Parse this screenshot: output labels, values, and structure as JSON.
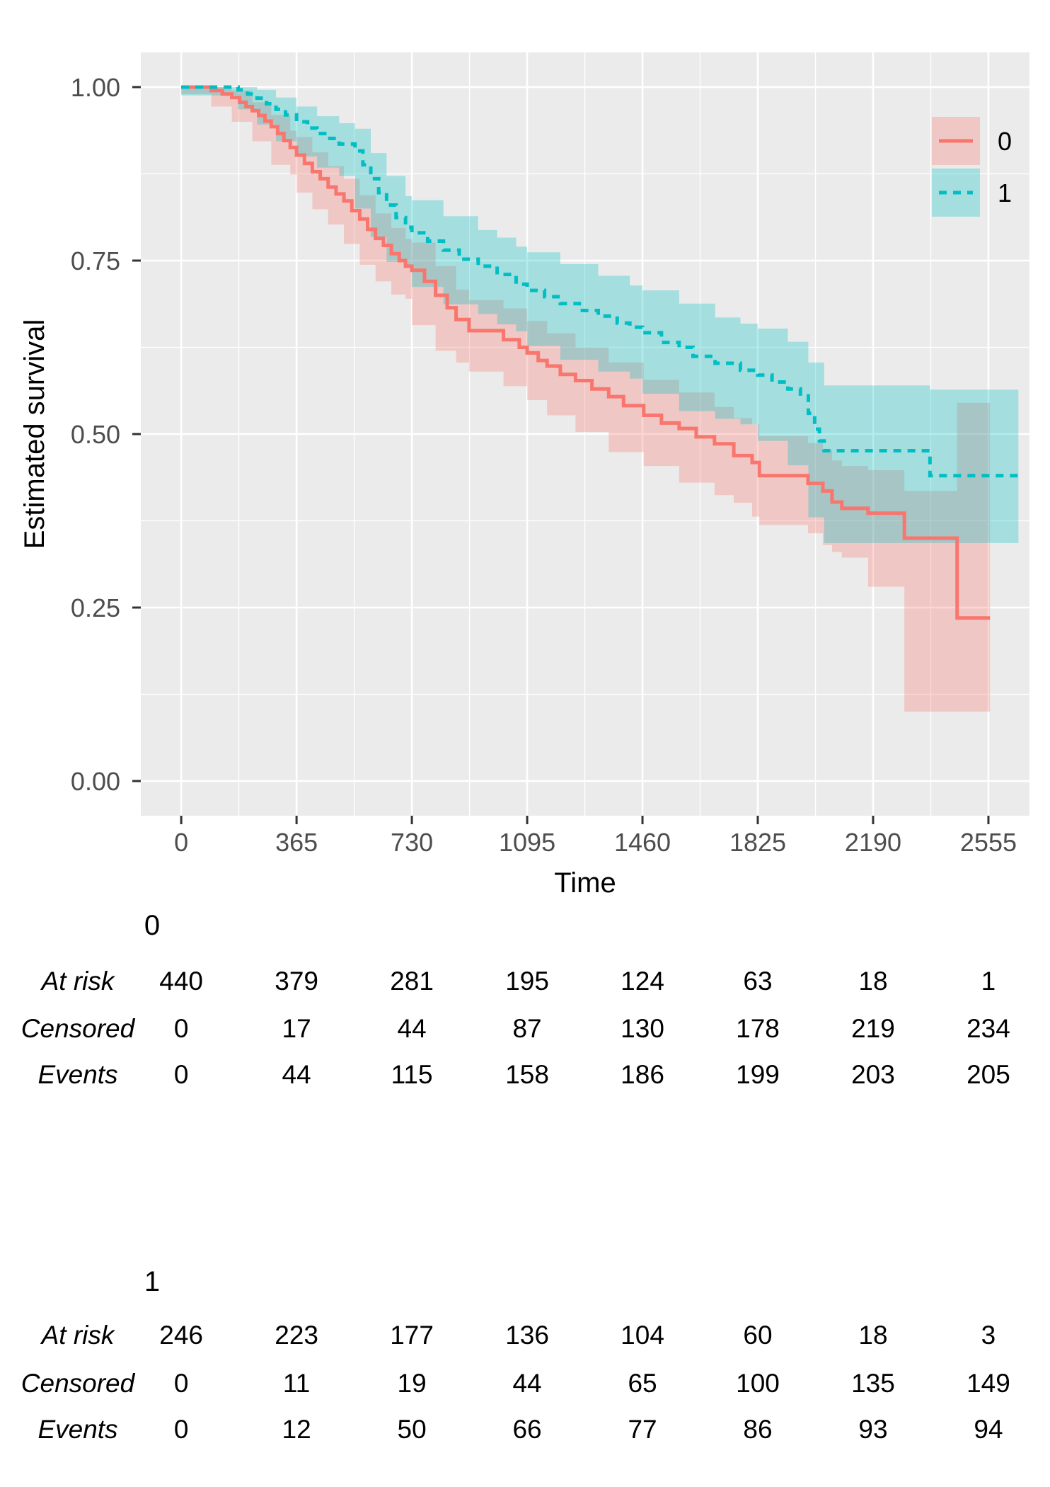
{
  "chart_data": {
    "type": "line",
    "subtype": "kaplan-meier-step-with-confidence-bands",
    "title": "",
    "xlabel": "Time",
    "ylabel": "Estimated survival",
    "xlim": [
      -128,
      2685
    ],
    "ylim": [
      -0.05,
      1.05
    ],
    "x_ticks": [
      0,
      365,
      730,
      1095,
      1460,
      1825,
      2190,
      2555
    ],
    "y_ticks": [
      0,
      0.25,
      0.5,
      0.75,
      1
    ],
    "y_tick_labels": [
      "0.00",
      "0.25",
      "0.50",
      "0.75",
      "1.00"
    ],
    "grid": true,
    "panel_background": "#EBEBEB",
    "grid_color": "#FFFFFF",
    "tick_mark_color": "#333333",
    "tick_text_color": "#4d4d4d",
    "legend": {
      "position": "top-right-inside",
      "entries": [
        {
          "label": "0",
          "color": "#F8766D",
          "linestyle": "solid"
        },
        {
          "label": "1",
          "color": "#00BFC4",
          "linestyle": "dashed"
        }
      ]
    },
    "series": [
      {
        "name": "0",
        "color": "#F8766D",
        "linestyle": "solid",
        "band_fill": "rgba(248,118,109,0.30)",
        "steps": [
          [
            0,
            1.0
          ],
          [
            95,
            0.995
          ],
          [
            130,
            0.99
          ],
          [
            160,
            0.985
          ],
          [
            185,
            0.978
          ],
          [
            205,
            0.972
          ],
          [
            225,
            0.966
          ],
          [
            245,
            0.959
          ],
          [
            265,
            0.951
          ],
          [
            285,
            0.943
          ],
          [
            305,
            0.933
          ],
          [
            325,
            0.923
          ],
          [
            345,
            0.913
          ],
          [
            365,
            0.902
          ],
          [
            390,
            0.89
          ],
          [
            415,
            0.878
          ],
          [
            440,
            0.868
          ],
          [
            465,
            0.856
          ],
          [
            490,
            0.846
          ],
          [
            515,
            0.836
          ],
          [
            540,
            0.822
          ],
          [
            565,
            0.81
          ],
          [
            590,
            0.795
          ],
          [
            615,
            0.782
          ],
          [
            640,
            0.772
          ],
          [
            665,
            0.76
          ],
          [
            690,
            0.75
          ],
          [
            710,
            0.742
          ],
          [
            730,
            0.736
          ],
          [
            770,
            0.72
          ],
          [
            805,
            0.7
          ],
          [
            842,
            0.682
          ],
          [
            870,
            0.665
          ],
          [
            911,
            0.649
          ],
          [
            1020,
            0.636
          ],
          [
            1070,
            0.625
          ],
          [
            1095,
            0.617
          ],
          [
            1130,
            0.606
          ],
          [
            1158,
            0.598
          ],
          [
            1200,
            0.586
          ],
          [
            1248,
            0.577
          ],
          [
            1300,
            0.565
          ],
          [
            1353,
            0.554
          ],
          [
            1400,
            0.541
          ],
          [
            1464,
            0.527
          ],
          [
            1520,
            0.516
          ],
          [
            1576,
            0.508
          ],
          [
            1630,
            0.496
          ],
          [
            1688,
            0.486
          ],
          [
            1749,
            0.469
          ],
          [
            1807,
            0.459
          ],
          [
            1830,
            0.44
          ],
          [
            1984,
            0.429
          ],
          [
            2031,
            0.418
          ],
          [
            2060,
            0.402
          ],
          [
            2091,
            0.393
          ],
          [
            2174,
            0.386
          ],
          [
            2289,
            0.35
          ],
          [
            2456,
            0.235
          ],
          [
            2560,
            0.235
          ]
        ],
        "ci": [
          [
            0,
            1,
            1
          ],
          [
            95,
            0.99,
            1
          ],
          [
            160,
            0.972,
            0.995
          ],
          [
            225,
            0.95,
            0.978
          ],
          [
            285,
            0.922,
            0.96
          ],
          [
            345,
            0.888,
            0.937
          ],
          [
            365,
            0.874,
            0.928
          ],
          [
            415,
            0.848,
            0.906
          ],
          [
            465,
            0.824,
            0.886
          ],
          [
            515,
            0.802,
            0.868
          ],
          [
            565,
            0.774,
            0.844
          ],
          [
            615,
            0.744,
            0.818
          ],
          [
            665,
            0.72,
            0.797
          ],
          [
            710,
            0.701,
            0.781
          ],
          [
            730,
            0.695,
            0.776
          ],
          [
            805,
            0.657,
            0.742
          ],
          [
            870,
            0.62,
            0.708
          ],
          [
            911,
            0.603,
            0.693
          ],
          [
            1020,
            0.59,
            0.681
          ],
          [
            1095,
            0.569,
            0.663
          ],
          [
            1158,
            0.549,
            0.645
          ],
          [
            1248,
            0.527,
            0.625
          ],
          [
            1353,
            0.503,
            0.603
          ],
          [
            1464,
            0.474,
            0.578
          ],
          [
            1576,
            0.454,
            0.56
          ],
          [
            1688,
            0.43,
            0.539
          ],
          [
            1749,
            0.412,
            0.523
          ],
          [
            1807,
            0.401,
            0.514
          ],
          [
            1830,
            0.381,
            0.497
          ],
          [
            1984,
            0.369,
            0.487
          ],
          [
            2031,
            0.357,
            0.477
          ],
          [
            2060,
            0.34,
            0.462
          ],
          [
            2091,
            0.33,
            0.454
          ],
          [
            2174,
            0.322,
            0.448
          ],
          [
            2289,
            0.28,
            0.418
          ],
          [
            2456,
            0.1,
            0.545
          ],
          [
            2560,
            0.1,
            0.545
          ]
        ]
      },
      {
        "name": "1",
        "color": "#00BFC4",
        "linestyle": "dashed",
        "band_fill": "rgba(0,191,196,0.30)",
        "steps": [
          [
            0,
            1.0
          ],
          [
            180,
            0.996
          ],
          [
            210,
            0.99
          ],
          [
            240,
            0.984
          ],
          [
            270,
            0.976
          ],
          [
            300,
            0.968
          ],
          [
            330,
            0.96
          ],
          [
            365,
            0.95
          ],
          [
            400,
            0.941
          ],
          [
            430,
            0.933
          ],
          [
            460,
            0.926
          ],
          [
            500,
            0.918
          ],
          [
            550,
            0.908
          ],
          [
            575,
            0.888
          ],
          [
            600,
            0.868
          ],
          [
            625,
            0.848
          ],
          [
            650,
            0.83
          ],
          [
            680,
            0.812
          ],
          [
            710,
            0.798
          ],
          [
            730,
            0.79
          ],
          [
            780,
            0.778
          ],
          [
            830,
            0.765
          ],
          [
            880,
            0.752
          ],
          [
            940,
            0.742
          ],
          [
            1000,
            0.73
          ],
          [
            1060,
            0.716
          ],
          [
            1095,
            0.707
          ],
          [
            1150,
            0.698
          ],
          [
            1200,
            0.688
          ],
          [
            1260,
            0.678
          ],
          [
            1320,
            0.67
          ],
          [
            1380,
            0.66
          ],
          [
            1420,
            0.654
          ],
          [
            1460,
            0.646
          ],
          [
            1520,
            0.632
          ],
          [
            1576,
            0.625
          ],
          [
            1620,
            0.612
          ],
          [
            1690,
            0.602
          ],
          [
            1770,
            0.592
          ],
          [
            1825,
            0.585
          ],
          [
            1870,
            0.575
          ],
          [
            1920,
            0.565
          ],
          [
            1960,
            0.555
          ],
          [
            1985,
            0.53
          ],
          [
            2005,
            0.507
          ],
          [
            2020,
            0.49
          ],
          [
            2035,
            0.476
          ],
          [
            2370,
            0.44
          ],
          [
            2650,
            0.44
          ]
        ],
        "ci": [
          [
            0,
            1,
            1
          ],
          [
            180,
            0.988,
            1
          ],
          [
            240,
            0.968,
            0.996
          ],
          [
            300,
            0.946,
            0.985
          ],
          [
            365,
            0.922,
            0.972
          ],
          [
            430,
            0.9,
            0.958
          ],
          [
            500,
            0.884,
            0.948
          ],
          [
            550,
            0.872,
            0.94
          ],
          [
            600,
            0.825,
            0.905
          ],
          [
            650,
            0.784,
            0.872
          ],
          [
            710,
            0.748,
            0.843
          ],
          [
            730,
            0.74,
            0.837
          ],
          [
            830,
            0.712,
            0.814
          ],
          [
            940,
            0.687,
            0.794
          ],
          [
            1000,
            0.673,
            0.783
          ],
          [
            1060,
            0.658,
            0.77
          ],
          [
            1095,
            0.648,
            0.762
          ],
          [
            1200,
            0.627,
            0.745
          ],
          [
            1320,
            0.607,
            0.728
          ],
          [
            1420,
            0.59,
            0.714
          ],
          [
            1460,
            0.58,
            0.707
          ],
          [
            1576,
            0.558,
            0.688
          ],
          [
            1690,
            0.533,
            0.668
          ],
          [
            1770,
            0.522,
            0.659
          ],
          [
            1825,
            0.514,
            0.652
          ],
          [
            1920,
            0.49,
            0.633
          ],
          [
            1985,
            0.455,
            0.603
          ],
          [
            2035,
            0.38,
            0.57
          ],
          [
            2370,
            0.343,
            0.564
          ],
          [
            2650,
            0.343,
            0.564
          ]
        ]
      }
    ]
  },
  "risk_tables": {
    "times": [
      0,
      365,
      730,
      1095,
      1460,
      1825,
      2190,
      2555
    ],
    "row_labels": [
      "At risk",
      "Censored",
      "Events"
    ],
    "groups": [
      {
        "label": "0",
        "rows": [
          [
            440,
            379,
            281,
            195,
            124,
            63,
            18,
            1
          ],
          [
            0,
            17,
            44,
            87,
            130,
            178,
            219,
            234
          ],
          [
            0,
            44,
            115,
            158,
            186,
            199,
            203,
            205
          ]
        ]
      },
      {
        "label": "1",
        "rows": [
          [
            246,
            223,
            177,
            136,
            104,
            60,
            18,
            3
          ],
          [
            0,
            11,
            19,
            44,
            65,
            100,
            135,
            149
          ],
          [
            0,
            12,
            50,
            66,
            77,
            86,
            93,
            94
          ]
        ]
      }
    ]
  }
}
